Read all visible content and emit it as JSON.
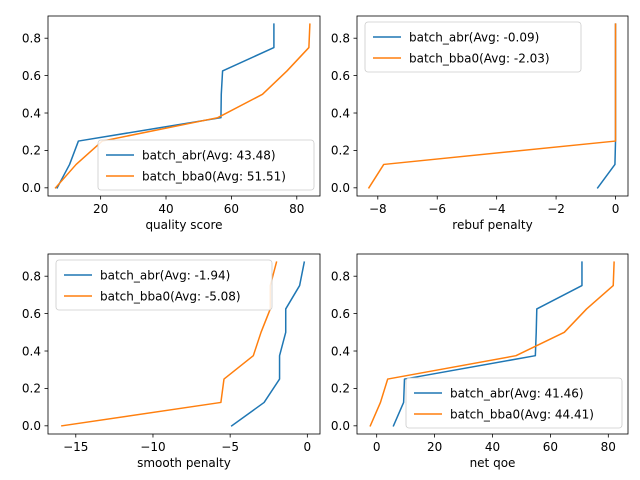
{
  "colors": {
    "batch_abr": "#1f77b4",
    "batch_bba0": "#ff7f0e"
  },
  "chart_data": [
    {
      "type": "line",
      "xlabel": "quality score",
      "xlim": [
        3.9,
        87.1
      ],
      "ylim": [
        -0.04375,
        0.91875
      ],
      "xticks": [
        20,
        40,
        60,
        80
      ],
      "xticklabels": [
        "20",
        "40",
        "60",
        "80"
      ],
      "yticks": [
        0.0,
        0.2,
        0.4,
        0.6,
        0.8
      ],
      "yticklabels": [
        "0.0",
        "0.2",
        "0.4",
        "0.6",
        "0.8"
      ],
      "legend": "lower-right",
      "series": [
        {
          "name": "batch_abr(Avg: 43.48)",
          "x": [
            6.7,
            10.5,
            13.2,
            56.8,
            56.9,
            57.3,
            73.0,
            73.0
          ],
          "y": [
            0.0,
            0.125,
            0.25,
            0.375,
            0.5,
            0.625,
            0.75,
            0.875
          ]
        },
        {
          "name": "batch_bba0(Avg: 51.51)",
          "x": [
            6.2,
            12.5,
            20.5,
            55.8,
            69.5,
            77.0,
            83.7,
            84.0
          ],
          "y": [
            0.0,
            0.125,
            0.25,
            0.375,
            0.5,
            0.625,
            0.75,
            0.875
          ]
        }
      ]
    },
    {
      "type": "line",
      "xlabel": "rebuf penalty",
      "xlim": [
        -8.7,
        0.42
      ],
      "ylim": [
        -0.04375,
        0.91875
      ],
      "xticks": [
        -8,
        -6,
        -4,
        -2,
        0
      ],
      "xticklabels": [
        "−8",
        "−6",
        "−4",
        "−2",
        "0"
      ],
      "yticks": [
        0.0,
        0.2,
        0.4,
        0.6,
        0.8
      ],
      "yticklabels": [
        "0.0",
        "0.2",
        "0.4",
        "0.6",
        "0.8"
      ],
      "legend": "top-left",
      "series": [
        {
          "name": "batch_abr(Avg: -0.09)",
          "x": [
            -0.6,
            -0.02,
            0.0,
            0.0,
            0.0,
            0.0,
            0.0,
            0.0
          ],
          "y": [
            0.0,
            0.125,
            0.25,
            0.375,
            0.5,
            0.625,
            0.75,
            0.875
          ]
        },
        {
          "name": "batch_bba0(Avg: -2.03)",
          "x": [
            -8.3,
            -7.8,
            0.0,
            0.0,
            0.0,
            0.0,
            0.0,
            0.0
          ],
          "y": [
            0.0,
            0.125,
            0.25,
            0.375,
            0.5,
            0.625,
            0.75,
            0.875
          ]
        }
      ]
    },
    {
      "type": "line",
      "xlabel": "smooth penalty",
      "xlim": [
        -16.8,
        0.82
      ],
      "ylim": [
        -0.04375,
        0.91875
      ],
      "xticks": [
        -15,
        -10,
        -5,
        0
      ],
      "xticklabels": [
        "−15",
        "−10",
        "−5",
        "0"
      ],
      "yticks": [
        0.0,
        0.2,
        0.4,
        0.6,
        0.8
      ],
      "yticklabels": [
        "0.0",
        "0.2",
        "0.4",
        "0.6",
        "0.8"
      ],
      "legend": "top-left",
      "series": [
        {
          "name": "batch_abr(Avg: -1.94)",
          "x": [
            -4.9,
            -2.8,
            -1.8,
            -1.8,
            -1.4,
            -1.4,
            -0.5,
            -0.2
          ],
          "y": [
            0.0,
            0.125,
            0.25,
            0.375,
            0.5,
            0.625,
            0.75,
            0.875
          ]
        },
        {
          "name": "batch_bba0(Avg: -5.08)",
          "x": [
            -15.9,
            -5.6,
            -5.4,
            -3.5,
            -3.0,
            -2.4,
            -2.4,
            -2.0
          ],
          "y": [
            0.0,
            0.125,
            0.25,
            0.375,
            0.5,
            0.625,
            0.75,
            0.875
          ]
        }
      ]
    },
    {
      "type": "line",
      "xlabel": "net qoe",
      "xlim": [
        -6.8,
        86.8
      ],
      "ylim": [
        -0.04375,
        0.91875
      ],
      "xticks": [
        0,
        20,
        40,
        60,
        80
      ],
      "xticklabels": [
        "0",
        "20",
        "40",
        "60",
        "80"
      ],
      "yticks": [
        0.0,
        0.2,
        0.4,
        0.6,
        0.8
      ],
      "yticklabels": [
        "0.0",
        "0.2",
        "0.4",
        "0.6",
        "0.8"
      ],
      "legend": "lower-right",
      "series": [
        {
          "name": "batch_abr(Avg: 41.46)",
          "x": [
            5.8,
            9.3,
            9.6,
            54.8,
            55.1,
            55.3,
            70.9,
            70.9
          ],
          "y": [
            0.0,
            0.125,
            0.25,
            0.375,
            0.5,
            0.625,
            0.75,
            0.875
          ]
        },
        {
          "name": "batch_bba0(Avg: 44.41)",
          "x": [
            -2.2,
            1.3,
            3.8,
            48.1,
            64.8,
            72.5,
            81.7,
            82.0
          ],
          "y": [
            0.0,
            0.125,
            0.25,
            0.375,
            0.5,
            0.625,
            0.75,
            0.875
          ]
        }
      ]
    }
  ]
}
